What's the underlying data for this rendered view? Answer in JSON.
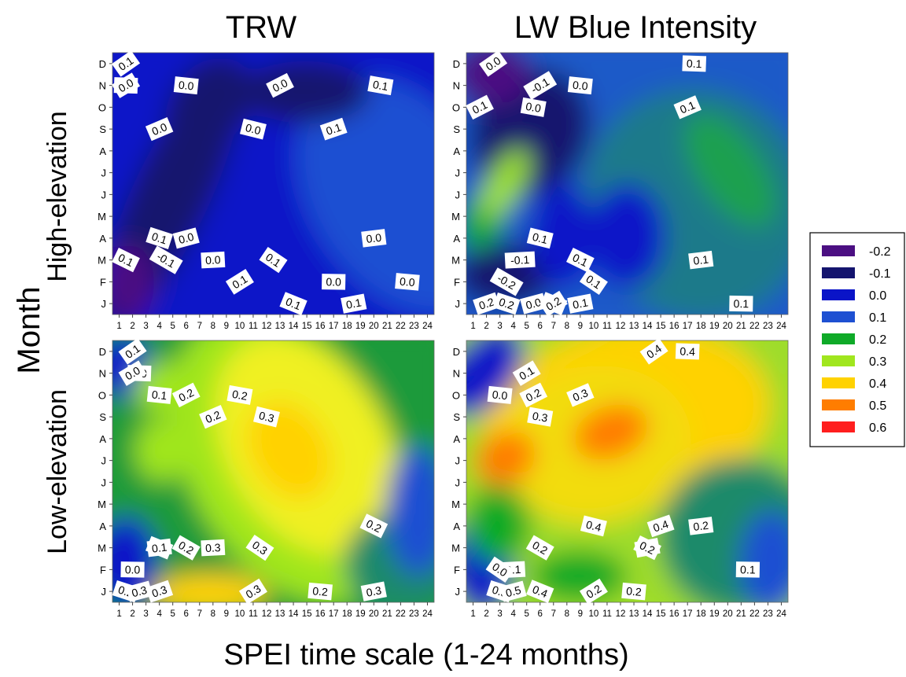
{
  "figure": {
    "col_titles": [
      "TRW",
      "LW Blue Intensity"
    ],
    "row_titles": [
      "High-elevation",
      "Low-elevation"
    ],
    "ylabel": "Month",
    "xlabel": "SPEI time scale (1-24 months)"
  },
  "legend": {
    "placement": "right",
    "items": [
      {
        "label": "-0.2",
        "color": "#4b0f82"
      },
      {
        "label": "-0.1",
        "color": "#14146e"
      },
      {
        "label": "0.0",
        "color": "#0a14c8"
      },
      {
        "label": "0.1",
        "color": "#1e50d2"
      },
      {
        "label": "0.2",
        "color": "#0faa28"
      },
      {
        "label": "0.3",
        "color": "#a0e61e"
      },
      {
        "label": "0.4",
        "color": "#ffd200"
      },
      {
        "label": "0.5",
        "color": "#ff7d00"
      },
      {
        "label": "0.6",
        "color": "#ff1e1e"
      }
    ]
  },
  "chart_data": [
    {
      "type": "heatmap",
      "title": "TRW",
      "row": "High-elevation",
      "x": [
        1,
        2,
        3,
        4,
        5,
        6,
        7,
        8,
        9,
        10,
        11,
        12,
        13,
        14,
        15,
        16,
        17,
        18,
        19,
        20,
        21,
        22,
        23,
        24
      ],
      "y": [
        "J",
        "F",
        "M",
        "A",
        "M",
        "J",
        "J",
        "A",
        "S",
        "O",
        "N",
        "D"
      ],
      "contour_labels": [
        {
          "text": "0.1",
          "x": 1.5,
          "y": "D"
        },
        {
          "text": "0.0",
          "x": 1.5,
          "y": "N"
        },
        {
          "text": "0.0",
          "x": 1.5,
          "y": "N"
        },
        {
          "text": "0.0",
          "x": 6,
          "y": "N"
        },
        {
          "text": "0.0",
          "x": 13,
          "y": "N"
        },
        {
          "text": "0.1",
          "x": 20.5,
          "y": "N"
        },
        {
          "text": "0.0",
          "x": 4,
          "y": "S"
        },
        {
          "text": "0.0",
          "x": 11,
          "y": "S"
        },
        {
          "text": "0.1",
          "x": 17,
          "y": "S"
        },
        {
          "text": "0.1",
          "x": 4,
          "y": "A"
        },
        {
          "text": "0.0",
          "x": 6,
          "y": "A"
        },
        {
          "text": "0.1",
          "x": 14,
          "y": "J"
        },
        {
          "text": "0.1",
          "x": 18.5,
          "y": "J"
        },
        {
          "text": "0.1",
          "x": 1.5,
          "y": "M"
        },
        {
          "text": "0.0",
          "x": 20,
          "y": "A"
        },
        {
          "text": "-0.1",
          "x": 4.5,
          "y": "M"
        },
        {
          "text": "0.0",
          "x": 8,
          "y": "M"
        },
        {
          "text": "0.1",
          "x": 12.5,
          "y": "M"
        },
        {
          "text": "0.0",
          "x": 17,
          "y": "F"
        },
        {
          "text": "0.1",
          "x": 10,
          "y": "F"
        },
        {
          "text": "0.0",
          "x": 22.5,
          "y": "F"
        }
      ]
    },
    {
      "type": "heatmap",
      "title": "LW Blue Intensity",
      "row": "High-elevation",
      "x": [
        1,
        2,
        3,
        4,
        5,
        6,
        7,
        8,
        9,
        10,
        11,
        12,
        13,
        14,
        15,
        16,
        17,
        18,
        19,
        20,
        21,
        22,
        23,
        24
      ],
      "y": [
        "J",
        "F",
        "M",
        "A",
        "M",
        "J",
        "J",
        "A",
        "S",
        "O",
        "N",
        "D"
      ],
      "contour_labels": [
        {
          "text": "0.0",
          "x": 2.5,
          "y": "D"
        },
        {
          "text": "0.1",
          "x": 17.5,
          "y": "D"
        },
        {
          "text": "-0.1",
          "x": 6,
          "y": "N"
        },
        {
          "text": "0.0",
          "x": 9,
          "y": "N"
        },
        {
          "text": "0.1",
          "x": 1.5,
          "y": "O"
        },
        {
          "text": "0.0",
          "x": 5.5,
          "y": "O"
        },
        {
          "text": "0.1",
          "x": 17,
          "y": "O"
        },
        {
          "text": "0.1",
          "x": 6,
          "y": "A"
        },
        {
          "text": "0.2",
          "x": 2,
          "y": "J"
        },
        {
          "text": "0.2",
          "x": 3.5,
          "y": "J"
        },
        {
          "text": "0.0",
          "x": 5.5,
          "y": "J"
        },
        {
          "text": "0.0",
          "x": 7,
          "y": "J"
        },
        {
          "text": "0.1",
          "x": 9,
          "y": "J"
        },
        {
          "text": "0.1",
          "x": 9,
          "y": "M"
        },
        {
          "text": "0.1",
          "x": 18,
          "y": "M"
        },
        {
          "text": "-0.2",
          "x": 3.5,
          "y": "F"
        },
        {
          "text": "-0.1",
          "x": 4.5,
          "y": "M"
        },
        {
          "text": "0.1",
          "x": 10,
          "y": "F"
        },
        {
          "text": "0.1",
          "x": 21,
          "y": "J"
        },
        {
          "text": "0.2",
          "x": 7,
          "y": "J"
        }
      ]
    },
    {
      "type": "heatmap",
      "title": "TRW",
      "row": "Low-elevation",
      "x": [
        1,
        2,
        3,
        4,
        5,
        6,
        7,
        8,
        9,
        10,
        11,
        12,
        13,
        14,
        15,
        16,
        17,
        18,
        19,
        20,
        21,
        22,
        23,
        24
      ],
      "y": [
        "J",
        "F",
        "M",
        "A",
        "M",
        "J",
        "J",
        "A",
        "S",
        "O",
        "N",
        "D"
      ],
      "contour_labels": [
        {
          "text": "0.1",
          "x": 2,
          "y": "D"
        },
        {
          "text": "0.0",
          "x": 2.5,
          "y": "N"
        },
        {
          "text": "0.0",
          "x": 2,
          "y": "N"
        },
        {
          "text": "0.1",
          "x": 4,
          "y": "O"
        },
        {
          "text": "0.2",
          "x": 6,
          "y": "O"
        },
        {
          "text": "0.2",
          "x": 10,
          "y": "O"
        },
        {
          "text": "0.2",
          "x": 8,
          "y": "S"
        },
        {
          "text": "0.3",
          "x": 12,
          "y": "S"
        },
        {
          "text": "0.3",
          "x": 4,
          "y": "J"
        },
        {
          "text": "0.2",
          "x": 1.5,
          "y": "J"
        },
        {
          "text": "0.3",
          "x": 2.5,
          "y": "J"
        },
        {
          "text": "0.2",
          "x": 4,
          "y": "M"
        },
        {
          "text": "0.3",
          "x": 20,
          "y": "J"
        },
        {
          "text": "0.2",
          "x": 20,
          "y": "A"
        },
        {
          "text": "0.1",
          "x": 4,
          "y": "M"
        },
        {
          "text": "0.2",
          "x": 6,
          "y": "M"
        },
        {
          "text": "0.3",
          "x": 8,
          "y": "M"
        },
        {
          "text": "0.3",
          "x": 11.5,
          "y": "M"
        },
        {
          "text": "0.0",
          "x": 2,
          "y": "F"
        },
        {
          "text": "0.3",
          "x": 11,
          "y": "J"
        },
        {
          "text": "0.2",
          "x": 16,
          "y": "J"
        }
      ]
    },
    {
      "type": "heatmap",
      "title": "LW Blue Intensity",
      "row": "Low-elevation",
      "x": [
        1,
        2,
        3,
        4,
        5,
        6,
        7,
        8,
        9,
        10,
        11,
        12,
        13,
        14,
        15,
        16,
        17,
        18,
        19,
        20,
        21,
        22,
        23,
        24
      ],
      "y": [
        "J",
        "F",
        "M",
        "A",
        "M",
        "J",
        "J",
        "A",
        "S",
        "O",
        "N",
        "D"
      ],
      "contour_labels": [
        {
          "text": "0.4",
          "x": 14.5,
          "y": "D"
        },
        {
          "text": "0.4",
          "x": 17,
          "y": "D"
        },
        {
          "text": "0.1",
          "x": 5,
          "y": "N"
        },
        {
          "text": "0.0",
          "x": 3,
          "y": "O"
        },
        {
          "text": "0.2",
          "x": 5.5,
          "y": "O"
        },
        {
          "text": "0.3",
          "x": 6,
          "y": "S"
        },
        {
          "text": "0.3",
          "x": 9,
          "y": "O"
        },
        {
          "text": "0.4",
          "x": 10,
          "y": "A"
        },
        {
          "text": "0.4",
          "x": 15,
          "y": "A"
        },
        {
          "text": "0.5",
          "x": 3,
          "y": "J"
        },
        {
          "text": "0.5",
          "x": 4,
          "y": "J"
        },
        {
          "text": "0.4",
          "x": 6,
          "y": "J"
        },
        {
          "text": "0.3",
          "x": 14,
          "y": "M"
        },
        {
          "text": "0.2",
          "x": 14,
          "y": "M"
        },
        {
          "text": "0.2",
          "x": 18,
          "y": "A"
        },
        {
          "text": "0.2",
          "x": 6,
          "y": "M"
        },
        {
          "text": "0.1",
          "x": 4,
          "y": "F"
        },
        {
          "text": "0.0",
          "x": 3,
          "y": "F"
        },
        {
          "text": "0.1",
          "x": 21.5,
          "y": "F"
        },
        {
          "text": "0.2",
          "x": 10,
          "y": "J"
        },
        {
          "text": "0.2",
          "x": 13,
          "y": "J"
        }
      ]
    }
  ]
}
